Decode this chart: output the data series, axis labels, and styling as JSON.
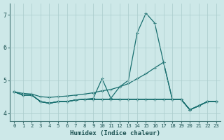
{
  "xlabel": "Humidex (Indice chaleur)",
  "background_color": "#cde8e8",
  "grid_color": "#aacccc",
  "line_color": "#1a7070",
  "xlim": [
    -0.5,
    23.5
  ],
  "ylim": [
    3.75,
    7.35
  ],
  "yticks": [
    4,
    5,
    6,
    7
  ],
  "xticks": [
    0,
    1,
    2,
    3,
    4,
    5,
    6,
    7,
    8,
    9,
    10,
    11,
    12,
    13,
    14,
    15,
    16,
    17,
    18,
    19,
    20,
    21,
    22,
    23
  ],
  "curve_main": [
    4.65,
    4.55,
    4.55,
    4.35,
    4.3,
    4.35,
    4.35,
    4.4,
    4.42,
    4.45,
    5.05,
    4.45,
    4.8,
    5.0,
    6.45,
    7.05,
    6.75,
    5.55,
    4.42,
    4.42,
    4.1,
    4.22,
    4.35,
    4.35
  ],
  "curve_diag": [
    4.65,
    4.6,
    4.58,
    4.5,
    4.48,
    4.5,
    4.52,
    4.55,
    4.58,
    4.62,
    4.68,
    4.72,
    4.8,
    4.9,
    5.05,
    5.2,
    5.38,
    5.55,
    4.42,
    4.42,
    4.1,
    4.22,
    4.35,
    4.35
  ],
  "curve_flat1": [
    4.65,
    4.55,
    4.55,
    4.35,
    4.3,
    4.35,
    4.35,
    4.4,
    4.42,
    4.42,
    4.42,
    4.42,
    4.42,
    4.42,
    4.42,
    4.42,
    4.42,
    4.42,
    4.42,
    4.42,
    4.1,
    4.22,
    4.35,
    4.35
  ],
  "curve_flat2": [
    4.65,
    4.55,
    4.55,
    4.35,
    4.3,
    4.35,
    4.35,
    4.4,
    4.42,
    4.42,
    4.42,
    4.42,
    4.42,
    4.42,
    4.42,
    4.42,
    4.42,
    4.42,
    4.42,
    4.42,
    4.1,
    4.22,
    4.35,
    4.35
  ],
  "curve_flat3": [
    4.65,
    4.55,
    4.55,
    4.35,
    4.3,
    4.35,
    4.35,
    4.4,
    4.42,
    4.42,
    4.42,
    4.42,
    4.42,
    4.42,
    4.42,
    4.42,
    4.42,
    4.42,
    4.42,
    4.42,
    4.1,
    4.22,
    4.35,
    4.35
  ]
}
